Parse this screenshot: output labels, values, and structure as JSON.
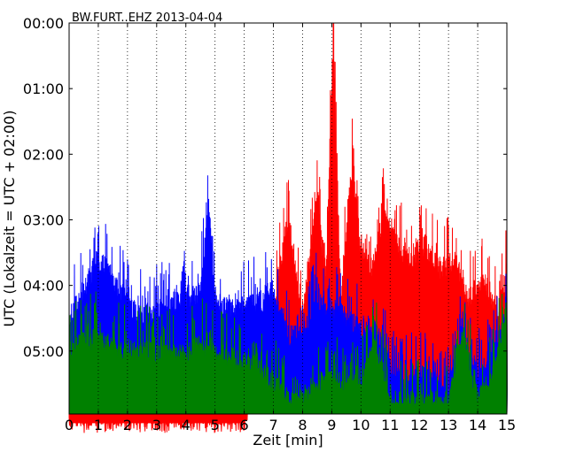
{
  "chart_data": {
    "type": "line",
    "title": "BW.FURT..EHZ 2013-04-04",
    "xlabel": "Zeit  [min]",
    "ylabel": "UTC (Lokalzeit = UTC + 02:00)",
    "xlim": [
      0,
      15
    ],
    "x_ticks": [
      "0",
      "1",
      "2",
      "3",
      "4",
      "5",
      "6",
      "7",
      "8",
      "9",
      "10",
      "11",
      "12",
      "13",
      "14",
      "15"
    ],
    "y_ticks": [
      "00:00",
      "01:00",
      "02:00",
      "03:00",
      "04:00",
      "05:00"
    ],
    "y_tick_hours": [
      0,
      1,
      2,
      3,
      4,
      5
    ],
    "ylim_hours": [
      0,
      5.96
    ],
    "grid": "vertical dotted lines at each minute",
    "series": [
      {
        "color": "#ff0000",
        "description_points": [
          {
            "x": 0,
            "y": 5.9
          },
          {
            "x": 1,
            "y": 5.9
          },
          {
            "x": 2,
            "y": 5.9
          },
          {
            "x": 3,
            "y": 5.9
          },
          {
            "x": 4,
            "y": 5.9
          },
          {
            "x": 5,
            "y": 5.9
          },
          {
            "x": 6,
            "y": 5.9
          },
          {
            "x": 7,
            "y": 4.4
          },
          {
            "x": 7.2,
            "y": 3.6
          },
          {
            "x": 7.5,
            "y": 2.8
          },
          {
            "x": 8,
            "y": 4.2
          },
          {
            "x": 8.3,
            "y": 3.2
          },
          {
            "x": 8.5,
            "y": 2.5
          },
          {
            "x": 8.8,
            "y": 3.7
          },
          {
            "x": 9.05,
            "y": 0.0
          },
          {
            "x": 9.3,
            "y": 4.0
          },
          {
            "x": 9.7,
            "y": 2.0
          },
          {
            "x": 10,
            "y": 3.2
          },
          {
            "x": 10.4,
            "y": 3.6
          },
          {
            "x": 10.8,
            "y": 2.6
          },
          {
            "x": 11.2,
            "y": 3.2
          },
          {
            "x": 11.7,
            "y": 3.4
          },
          {
            "x": 12.2,
            "y": 3.2
          },
          {
            "x": 12.7,
            "y": 3.6
          },
          {
            "x": 13.2,
            "y": 3.4
          },
          {
            "x": 13.7,
            "y": 4.0
          },
          {
            "x": 14.2,
            "y": 3.7
          },
          {
            "x": 14.7,
            "y": 4.2
          },
          {
            "x": 15,
            "y": 3.6
          }
        ]
      },
      {
        "color": "#0000ff",
        "description_points": [
          {
            "x": 0,
            "y": 4.3
          },
          {
            "x": 0.5,
            "y": 3.9
          },
          {
            "x": 1,
            "y": 3.4
          },
          {
            "x": 1.5,
            "y": 3.7
          },
          {
            "x": 2,
            "y": 4.1
          },
          {
            "x": 2.5,
            "y": 4.3
          },
          {
            "x": 3,
            "y": 4.2
          },
          {
            "x": 3.5,
            "y": 4.1
          },
          {
            "x": 4,
            "y": 4.0
          },
          {
            "x": 4.5,
            "y": 3.9
          },
          {
            "x": 4.8,
            "y": 2.6
          },
          {
            "x": 5,
            "y": 4.0
          },
          {
            "x": 5.5,
            "y": 4.2
          },
          {
            "x": 6,
            "y": 4.1
          },
          {
            "x": 6.5,
            "y": 4.1
          },
          {
            "x": 7,
            "y": 3.9
          },
          {
            "x": 7.5,
            "y": 4.6
          },
          {
            "x": 8,
            "y": 4.6
          },
          {
            "x": 8.5,
            "y": 4.0
          },
          {
            "x": 9,
            "y": 4.2
          },
          {
            "x": 9.5,
            "y": 4.3
          },
          {
            "x": 10,
            "y": 4.5
          },
          {
            "x": 10.5,
            "y": 4.5
          },
          {
            "x": 11,
            "y": 5.1
          },
          {
            "x": 11.5,
            "y": 5.3
          },
          {
            "x": 12,
            "y": 5.2
          },
          {
            "x": 12.5,
            "y": 5.3
          },
          {
            "x": 13,
            "y": 5.3
          },
          {
            "x": 13.5,
            "y": 4.5
          },
          {
            "x": 14,
            "y": 5.2
          },
          {
            "x": 14.5,
            "y": 4.8
          },
          {
            "x": 15,
            "y": 4.3
          }
        ]
      },
      {
        "color": "#008000",
        "description_points": [
          {
            "x": 0,
            "y": 4.8
          },
          {
            "x": 0.5,
            "y": 4.7
          },
          {
            "x": 1,
            "y": 4.6
          },
          {
            "x": 1.5,
            "y": 4.8
          },
          {
            "x": 2,
            "y": 4.8
          },
          {
            "x": 2.5,
            "y": 4.8
          },
          {
            "x": 3,
            "y": 4.9
          },
          {
            "x": 3.5,
            "y": 4.9
          },
          {
            "x": 4,
            "y": 4.9
          },
          {
            "x": 4.5,
            "y": 4.7
          },
          {
            "x": 5,
            "y": 4.9
          },
          {
            "x": 5.5,
            "y": 4.9
          },
          {
            "x": 6,
            "y": 5.0
          },
          {
            "x": 6.5,
            "y": 5.1
          },
          {
            "x": 7,
            "y": 5.3
          },
          {
            "x": 7.5,
            "y": 5.6
          },
          {
            "x": 8,
            "y": 5.6
          },
          {
            "x": 8.5,
            "y": 5.3
          },
          {
            "x": 9,
            "y": 5.3
          },
          {
            "x": 9.5,
            "y": 5.3
          },
          {
            "x": 10,
            "y": 5.3
          },
          {
            "x": 10.5,
            "y": 4.7
          },
          {
            "x": 11,
            "y": 5.6
          },
          {
            "x": 11.5,
            "y": 5.6
          },
          {
            "x": 12,
            "y": 5.6
          },
          {
            "x": 12.5,
            "y": 5.6
          },
          {
            "x": 13,
            "y": 5.6
          },
          {
            "x": 13.5,
            "y": 4.6
          },
          {
            "x": 14,
            "y": 5.6
          },
          {
            "x": 14.5,
            "y": 5.2
          },
          {
            "x": 15,
            "y": 4.2
          }
        ]
      }
    ]
  }
}
